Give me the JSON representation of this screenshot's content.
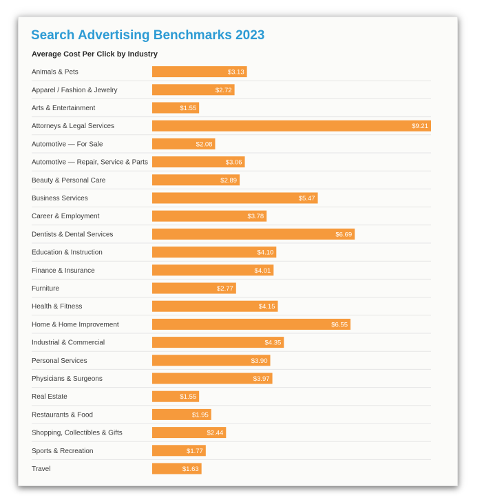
{
  "title": "Search Advertising Benchmarks 2023",
  "subtitle": "Average Cost Per Click by Industry",
  "colors": {
    "title": "#2d9bd4",
    "bar": "#f69a3c"
  },
  "chart_data": {
    "type": "bar",
    "orientation": "horizontal",
    "title": "Search Advertising Benchmarks 2023",
    "subtitle": "Average Cost Per Click by Industry",
    "xlabel": "",
    "ylabel": "",
    "xlim": [
      0,
      9.21
    ],
    "grid": true,
    "legend": "none",
    "categories": [
      "Animals & Pets",
      "Apparel / Fashion & Jewelry",
      "Arts & Entertainment",
      "Attorneys & Legal Services",
      "Automotive — For Sale",
      "Automotive — Repair, Service & Parts",
      "Beauty & Personal Care",
      "Business Services",
      "Career & Employment",
      "Dentists & Dental Services",
      "Education & Instruction",
      "Finance & Insurance",
      "Furniture",
      "Health & Fitness",
      "Home & Home Improvement",
      "Industrial & Commercial",
      "Personal Services",
      "Physicians & Surgeons",
      "Real Estate",
      "Restaurants & Food",
      "Shopping, Collectibles & Gifts",
      "Sports & Recreation",
      "Travel"
    ],
    "values": [
      3.13,
      2.72,
      1.55,
      9.21,
      2.08,
      3.06,
      2.89,
      5.47,
      3.78,
      6.69,
      4.1,
      4.01,
      2.77,
      4.15,
      6.55,
      4.35,
      3.9,
      3.97,
      1.55,
      1.95,
      2.44,
      1.77,
      1.63
    ],
    "value_labels": [
      "$3.13",
      "$2.72",
      "$1.55",
      "$9.21",
      "$2.08",
      "$3.06",
      "$2.89",
      "$5.47",
      "$3.78",
      "$6.69",
      "$4.10",
      "$4.01",
      "$2.77",
      "$4.15",
      "$6.55",
      "$4.35",
      "$3.90",
      "$3.97",
      "$1.55",
      "$1.95",
      "$2.44",
      "$1.77",
      "$1.63"
    ]
  }
}
